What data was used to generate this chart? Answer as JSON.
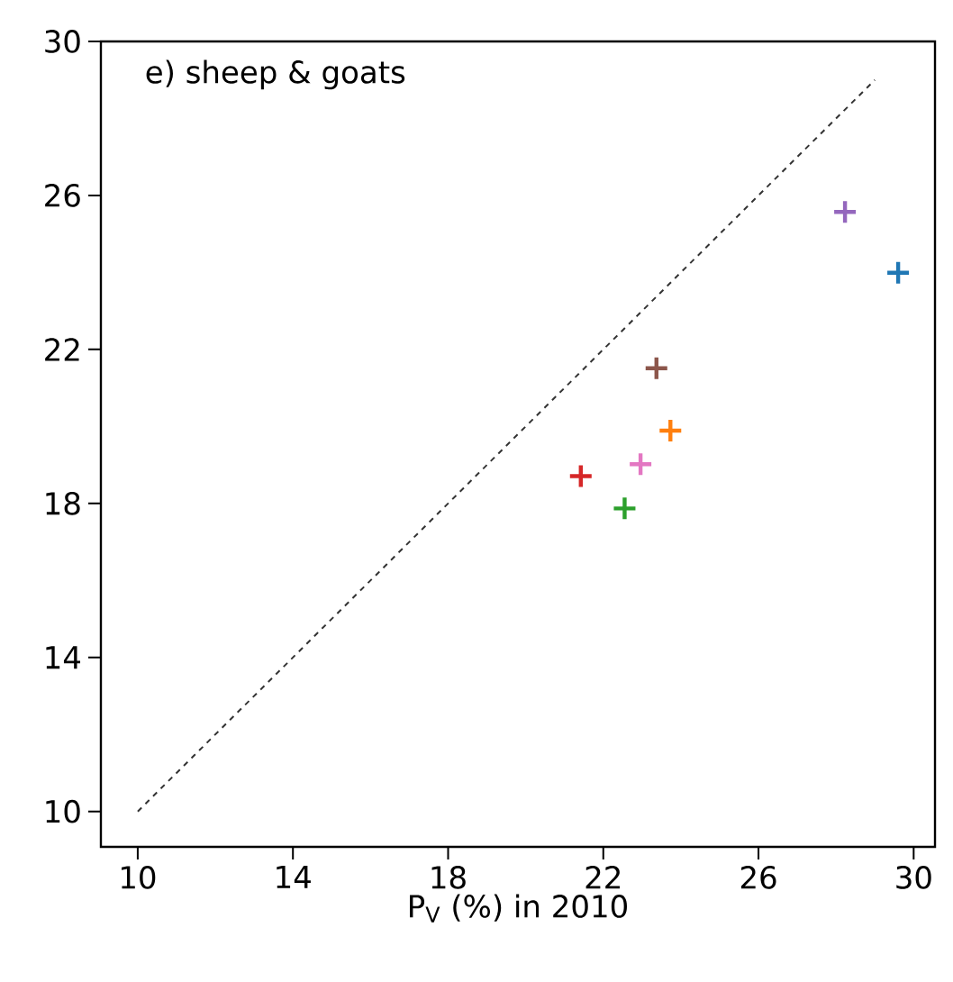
{
  "chart_data": {
    "type": "scatter",
    "xlabel": "P$_{V}$ (%) in 2010",
    "annotations": [
      "e) sheep & goats"
    ],
    "xlim": [
      9.05,
      30.55
    ],
    "ylim": [
      9.08,
      30
    ],
    "xticks": [
      10,
      14,
      18,
      22,
      26,
      30
    ],
    "yticks": [
      10,
      14,
      18,
      22,
      26,
      30
    ],
    "marker": "cross",
    "series": [
      {
        "color": "#1f77b4",
        "x": [
          29.6
        ],
        "values": [
          23.99
        ]
      },
      {
        "color": "#ff7f0e",
        "x": [
          23.73
        ],
        "values": [
          19.89
        ]
      },
      {
        "color": "#2ca02c",
        "x": [
          22.55
        ],
        "values": [
          17.87
        ]
      },
      {
        "color": "#d62728",
        "x": [
          21.42
        ],
        "values": [
          18.71
        ]
      },
      {
        "color": "#9467bd",
        "x": [
          28.23
        ],
        "values": [
          25.57
        ]
      },
      {
        "color": "#8c564b",
        "x": [
          23.37
        ],
        "values": [
          21.51
        ]
      },
      {
        "color": "#e377c2",
        "x": [
          22.96
        ],
        "values": [
          19.02
        ]
      },
      {
        "type": "line",
        "color": "#333333",
        "line_style": "dashed",
        "marker": "none",
        "x": [
          10,
          29
        ],
        "values": [
          10,
          29
        ]
      }
    ]
  }
}
